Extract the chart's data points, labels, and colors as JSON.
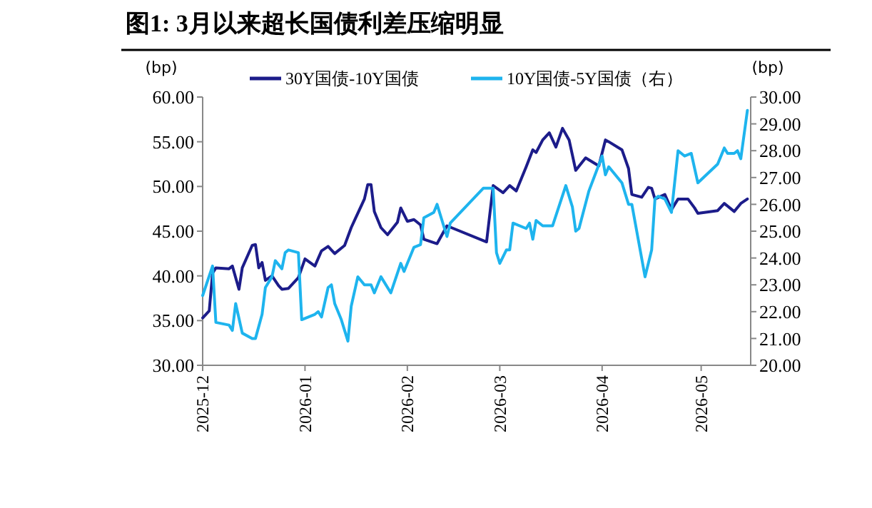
{
  "chart_data": {
    "type": "line",
    "title": "图1: 3月以来超长国债利差压缩明显",
    "ylabel": "(bp)",
    "y2label": "(bp)",
    "xlim": [
      "2025-12-01",
      "2026-05-16"
    ],
    "xticks": [
      "2025-12",
      "2026-01",
      "2026-02",
      "2026-03",
      "2026-04",
      "2026-05"
    ],
    "ylim": [
      30,
      60
    ],
    "yticks": [
      {
        "value": 30,
        "label": "30.00"
      },
      {
        "value": 35,
        "label": "35.00"
      },
      {
        "value": 40,
        "label": "40.00"
      },
      {
        "value": 45,
        "label": "45.00"
      },
      {
        "value": 50,
        "label": "50.00"
      },
      {
        "value": 55,
        "label": "55.00"
      },
      {
        "value": 60,
        "label": "60.00"
      }
    ],
    "y2lim": [
      20,
      30
    ],
    "y2ticks": [
      {
        "value": 20,
        "label": "20.00"
      },
      {
        "value": 21,
        "label": "21.00"
      },
      {
        "value": 22,
        "label": "22.00"
      },
      {
        "value": 23,
        "label": "23.00"
      },
      {
        "value": 24,
        "label": "24.00"
      },
      {
        "value": 25,
        "label": "25.00"
      },
      {
        "value": 26,
        "label": "26.00"
      },
      {
        "value": 27,
        "label": "27.00"
      },
      {
        "value": 28,
        "label": "28.00"
      },
      {
        "value": 29,
        "label": "29.00"
      },
      {
        "value": 30,
        "label": "30.00"
      }
    ],
    "grid": false,
    "legend": "top",
    "marker": "none",
    "line_style": "solid",
    "series": [
      {
        "name": "30Y国债-10Y国债",
        "color": "#1c1c8a",
        "x": [
          "2025-12-01",
          "2025-12-03",
          "2025-12-04",
          "2025-12-05",
          "2025-12-09",
          "2025-12-10",
          "2025-12-12",
          "2025-12-13",
          "2025-12-16",
          "2025-12-17",
          "2025-12-18",
          "2025-12-19",
          "2025-12-20",
          "2025-12-22",
          "2025-12-24",
          "2025-12-25",
          "2025-12-27",
          "2025-12-30",
          "2026-01-01",
          "2026-01-04",
          "2026-01-06",
          "2026-01-08",
          "2026-01-10",
          "2026-01-13",
          "2026-01-15",
          "2026-01-16",
          "2026-01-19",
          "2026-01-20",
          "2026-01-21",
          "2026-01-22",
          "2026-01-24",
          "2026-01-26",
          "2026-01-29",
          "2026-01-30",
          "2026-02-01",
          "2026-02-03",
          "2026-02-05",
          "2026-02-06",
          "2026-02-10",
          "2026-02-13",
          "2026-02-25",
          "2026-02-27",
          "2026-03-02",
          "2026-03-04",
          "2026-03-06",
          "2026-03-09",
          "2026-03-11",
          "2026-03-12",
          "2026-03-14",
          "2026-03-16",
          "2026-03-18",
          "2026-03-20",
          "2026-03-22",
          "2026-03-24",
          "2026-03-27",
          "2026-03-31",
          "2026-04-02",
          "2026-04-03",
          "2026-04-07",
          "2026-04-09",
          "2026-04-10",
          "2026-04-13",
          "2026-04-15",
          "2026-04-16",
          "2026-04-17",
          "2026-04-20",
          "2026-04-22",
          "2026-04-24",
          "2026-04-27",
          "2026-04-29",
          "2026-04-30",
          "2026-05-06",
          "2026-05-08",
          "2026-05-11",
          "2026-05-13",
          "2026-05-15"
        ],
        "values": [
          35.3,
          36.1,
          40.3,
          40.9,
          40.8,
          41.1,
          38.5,
          40.9,
          43.4,
          43.5,
          40.9,
          41.5,
          39.5,
          40.0,
          38.9,
          38.5,
          38.6,
          39.8,
          41.9,
          41.1,
          42.8,
          43.3,
          42.5,
          43.4,
          45.4,
          46.2,
          48.6,
          50.2,
          50.2,
          47.2,
          45.4,
          44.6,
          46.0,
          47.6,
          46.1,
          46.3,
          45.7,
          44.1,
          43.6,
          45.6,
          43.8,
          50.1,
          49.3,
          50.1,
          49.5,
          52.2,
          54.1,
          53.8,
          55.2,
          56.0,
          54.4,
          56.5,
          55.2,
          51.8,
          53.2,
          52.3,
          55.2,
          55.0,
          54.1,
          52.0,
          49.1,
          48.8,
          49.9,
          49.8,
          48.6,
          49.1,
          47.4,
          48.6,
          48.6,
          47.6,
          47.0,
          47.3,
          48.1,
          47.2,
          48.1,
          48.6
        ]
      },
      {
        "name": "10Y国债-5Y国债（右）",
        "color": "#1eb4ee",
        "axis": "y2",
        "x": [
          "2025-12-01",
          "2025-12-04",
          "2025-12-05",
          "2025-12-09",
          "2025-12-10",
          "2025-12-11",
          "2025-12-13",
          "2025-12-16",
          "2025-12-17",
          "2025-12-19",
          "2025-12-20",
          "2025-12-22",
          "2025-12-23",
          "2025-12-25",
          "2025-12-26",
          "2025-12-27",
          "2025-12-30",
          "2025-12-31",
          "2026-01-04",
          "2026-01-05",
          "2026-01-06",
          "2026-01-08",
          "2026-01-09",
          "2026-01-10",
          "2026-01-12",
          "2026-01-14",
          "2026-01-15",
          "2026-01-17",
          "2026-01-19",
          "2026-01-21",
          "2026-01-22",
          "2026-01-24",
          "2026-01-27",
          "2026-01-30",
          "2026-01-31",
          "2026-02-03",
          "2026-02-05",
          "2026-02-06",
          "2026-02-09",
          "2026-02-10",
          "2026-02-13",
          "2026-02-14",
          "2026-02-24",
          "2026-02-27",
          "2026-02-28",
          "2026-03-01",
          "2026-03-03",
          "2026-03-04",
          "2026-03-05",
          "2026-03-09",
          "2026-03-10",
          "2026-03-11",
          "2026-03-12",
          "2026-03-14",
          "2026-03-17",
          "2026-03-21",
          "2026-03-23",
          "2026-03-24",
          "2026-03-25",
          "2026-03-28",
          "2026-04-01",
          "2026-04-02",
          "2026-04-03",
          "2026-04-07",
          "2026-04-09",
          "2026-04-10",
          "2026-04-14",
          "2026-04-16",
          "2026-04-17",
          "2026-04-18",
          "2026-04-20",
          "2026-04-22",
          "2026-04-24",
          "2026-04-26",
          "2026-04-28",
          "2026-04-30",
          "2026-05-06",
          "2026-05-08",
          "2026-05-09",
          "2026-05-11",
          "2026-05-12",
          "2026-05-13",
          "2026-05-15"
        ],
        "values": [
          22.6,
          23.7,
          21.6,
          21.5,
          21.3,
          22.3,
          21.2,
          21.0,
          21.0,
          21.9,
          22.9,
          23.3,
          23.9,
          23.6,
          24.2,
          24.3,
          24.2,
          21.7,
          21.9,
          22.0,
          21.8,
          22.9,
          23.0,
          22.3,
          21.7,
          20.9,
          22.2,
          23.3,
          23.0,
          23.0,
          22.7,
          23.3,
          22.7,
          23.8,
          23.5,
          24.4,
          24.5,
          25.5,
          25.7,
          26.0,
          24.8,
          25.3,
          26.6,
          26.6,
          24.2,
          23.8,
          24.3,
          24.3,
          25.3,
          25.1,
          25.3,
          24.7,
          25.4,
          25.2,
          25.2,
          26.7,
          25.9,
          25.0,
          25.1,
          26.5,
          27.8,
          27.1,
          27.4,
          26.8,
          26.0,
          26.0,
          23.3,
          24.3,
          26.2,
          26.3,
          26.2,
          25.7,
          28.0,
          27.8,
          27.9,
          26.8,
          27.5,
          28.1,
          27.9,
          27.9,
          28.0,
          27.7,
          29.5
        ]
      }
    ]
  }
}
